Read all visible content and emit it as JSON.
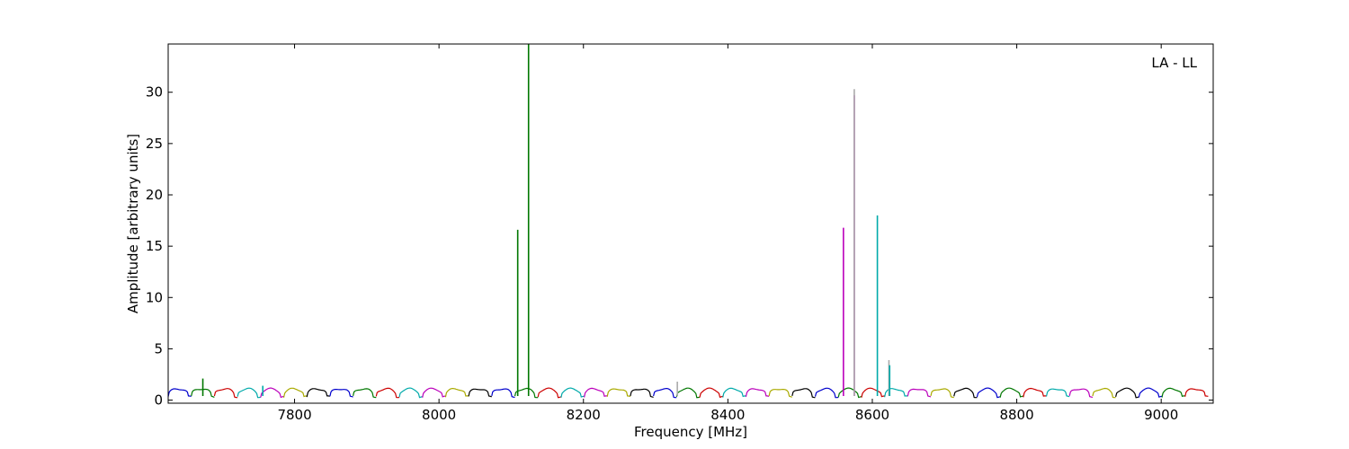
{
  "chart_data": {
    "type": "line",
    "title": "",
    "annotation": "LA - LL",
    "xlabel": "Frequency [MHz]",
    "ylabel": "Amplitude [arbitrary units]",
    "xlim": [
      7625,
      9072
    ],
    "ylim": [
      -0.3,
      34.7
    ],
    "xticks": [
      7800,
      8000,
      8200,
      8400,
      8600,
      8800,
      9000
    ],
    "yticks": [
      0,
      5,
      10,
      15,
      20,
      25,
      30
    ],
    "grid": false,
    "legend": "none",
    "channel_width_mhz": 32,
    "cycle_colors": [
      "#0000cc",
      "#007700",
      "#cc0000",
      "#00aaaa",
      "#bb00bb",
      "#aaaa00",
      "#000000"
    ],
    "channels_start_mhz": [
      7625,
      7657,
      7689,
      7721,
      7753,
      7785,
      7817,
      7849,
      7881,
      7913,
      7945,
      7977,
      8009,
      8041,
      8073,
      8105,
      8137,
      8169,
      8201,
      8233,
      8265,
      8297,
      8329,
      8361,
      8393,
      8425,
      8457,
      8489,
      8521,
      8553,
      8585,
      8617,
      8649,
      8681,
      8713,
      8745,
      8777,
      8809,
      8841,
      8873,
      8905,
      8937,
      8969,
      9001,
      9033
    ],
    "channel_level": 1.1,
    "spikes": [
      {
        "x": 7673,
        "y": 2.1,
        "color": "#007700"
      },
      {
        "x": 7756,
        "y": 1.4,
        "color": "#00aaaa"
      },
      {
        "x": 8109,
        "y": 16.6,
        "color": "#007700"
      },
      {
        "x": 8124,
        "y": 34.7,
        "color": "#007700"
      },
      {
        "x": 8330,
        "y": 1.8,
        "color": "#aaaaaa"
      },
      {
        "x": 8560,
        "y": 16.8,
        "color": "#bb00bb"
      },
      {
        "x": 8575,
        "y": 29.7,
        "color": "#bb00bb"
      },
      {
        "x": 8575,
        "y": 30.3,
        "color": "#aaaaaa"
      },
      {
        "x": 8607,
        "y": 18.0,
        "color": "#00aaaa"
      },
      {
        "x": 8623,
        "y": 3.9,
        "color": "#aaaaaa"
      },
      {
        "x": 8624,
        "y": 3.4,
        "color": "#00aaaa"
      }
    ]
  }
}
